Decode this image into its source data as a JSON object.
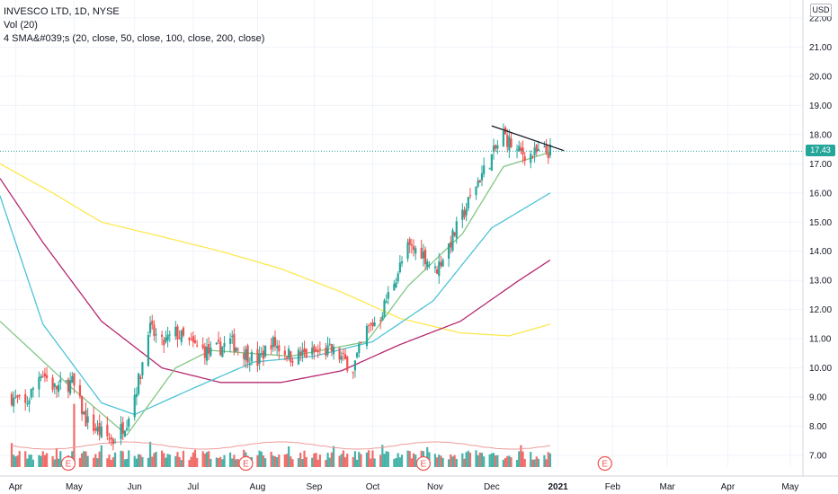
{
  "legend": {
    "symbol_line": "INVESCO LTD, 1D, NYSE",
    "vol_line": "Vol (20)",
    "sma_line": "4 SMA&#039;s (20, close, 50, close, 100, close, 200, close)"
  },
  "currency": "USD",
  "last_price_label": "17.43",
  "earnings_marker": "E",
  "colors": {
    "up": "#26a69a",
    "down": "#ef5350",
    "vol_up": "#26a69a",
    "vol_down": "#ef5350",
    "sma20": "#81c784",
    "sma50": "#4dc3d6",
    "sma100": "#b5286f",
    "sma200": "#fde84e",
    "vol_ma": "#ef9a9a",
    "trendline": "#131722"
  },
  "chart_data": {
    "type": "candlestick",
    "title": "INVESCO LTD, 1D, NYSE",
    "y_ticks": [
      "7.00",
      "8.00",
      "9.00",
      "10.00",
      "11.00",
      "12.00",
      "13.00",
      "14.00",
      "15.00",
      "16.00",
      "17.00",
      "18.00",
      "19.00",
      "20.00",
      "21.00",
      "22.00"
    ],
    "ylim": [
      6.6,
      22.3
    ],
    "x_ticks": [
      "Apr",
      "May",
      "Jun",
      "Jul",
      "Aug",
      "Sep",
      "Oct",
      "Nov",
      "Dec",
      "2021",
      "Feb",
      "Mar",
      "Apr",
      "May"
    ],
    "last_price": 17.43,
    "close_series_anchors": [
      [
        "2020-03-30",
        9.0
      ],
      [
        "2020-04-06",
        8.7
      ],
      [
        "2020-04-14",
        9.9
      ],
      [
        "2020-04-21",
        9.3
      ],
      [
        "2020-04-30",
        9.5
      ],
      [
        "2020-05-07",
        8.2
      ],
      [
        "2020-05-14",
        7.8
      ],
      [
        "2020-05-21",
        7.5
      ],
      [
        "2020-05-28",
        8.2
      ],
      [
        "2020-06-04",
        9.8
      ],
      [
        "2020-06-08",
        11.4
      ],
      [
        "2020-06-15",
        10.8
      ],
      [
        "2020-06-22",
        11.2
      ],
      [
        "2020-06-30",
        10.8
      ],
      [
        "2020-07-10",
        10.5
      ],
      [
        "2020-07-20",
        10.9
      ],
      [
        "2020-08-03",
        10.2
      ],
      [
        "2020-08-10",
        10.9
      ],
      [
        "2020-08-20",
        10.4
      ],
      [
        "2020-08-31",
        10.5
      ],
      [
        "2020-09-10",
        10.6
      ],
      [
        "2020-09-21",
        10.0
      ],
      [
        "2020-09-28",
        11.3
      ],
      [
        "2020-10-05",
        11.8
      ],
      [
        "2020-10-12",
        13.0
      ],
      [
        "2020-10-19",
        14.1
      ],
      [
        "2020-10-26",
        14.0
      ],
      [
        "2020-11-02",
        13.3
      ],
      [
        "2020-11-09",
        14.2
      ],
      [
        "2020-11-16",
        15.2
      ],
      [
        "2020-11-23",
        16.3
      ],
      [
        "2020-11-30",
        17.1
      ],
      [
        "2020-12-07",
        18.0
      ],
      [
        "2020-12-14",
        17.4
      ],
      [
        "2020-12-21",
        17.3
      ],
      [
        "2020-12-31",
        17.43
      ]
    ],
    "volume_relative": "shown as bars along bottom; values not labeled",
    "sma_anchors": {
      "sma20": [
        [
          "2020-03-24",
          11.6
        ],
        [
          "2020-04-30",
          9.3
        ],
        [
          "2020-05-28",
          7.7
        ],
        [
          "2020-06-22",
          10.0
        ],
        [
          "2020-07-10",
          10.6
        ],
        [
          "2020-08-20",
          10.4
        ],
        [
          "2020-09-28",
          10.9
        ],
        [
          "2020-10-19",
          12.8
        ],
        [
          "2020-11-16",
          14.6
        ],
        [
          "2020-12-07",
          16.9
        ],
        [
          "2020-12-31",
          17.4
        ]
      ],
      "sma50": [
        [
          "2020-03-24",
          15.9
        ],
        [
          "2020-04-15",
          11.5
        ],
        [
          "2020-05-15",
          8.8
        ],
        [
          "2020-06-01",
          8.4
        ],
        [
          "2020-07-01",
          9.3
        ],
        [
          "2020-08-01",
          10.2
        ],
        [
          "2020-09-01",
          10.4
        ],
        [
          "2020-10-01",
          10.9
        ],
        [
          "2020-11-01",
          12.3
        ],
        [
          "2020-12-01",
          14.8
        ],
        [
          "2020-12-31",
          16.0
        ]
      ],
      "sma100": [
        [
          "2020-03-24",
          16.5
        ],
        [
          "2020-04-15",
          14.3
        ],
        [
          "2020-05-15",
          11.6
        ],
        [
          "2020-06-15",
          10.0
        ],
        [
          "2020-07-15",
          9.5
        ],
        [
          "2020-08-15",
          9.5
        ],
        [
          "2020-09-15",
          9.9
        ],
        [
          "2020-10-15",
          10.8
        ],
        [
          "2020-11-15",
          11.6
        ],
        [
          "2020-12-15",
          13.0
        ],
        [
          "2020-12-31",
          13.7
        ]
      ],
      "sma200": [
        [
          "2020-03-24",
          17.0
        ],
        [
          "2020-04-20",
          16.0
        ],
        [
          "2020-05-15",
          15.0
        ],
        [
          "2020-06-15",
          14.5
        ],
        [
          "2020-07-15",
          14.0
        ],
        [
          "2020-08-15",
          13.4
        ],
        [
          "2020-09-15",
          12.6
        ],
        [
          "2020-10-15",
          11.7
        ],
        [
          "2020-11-15",
          11.2
        ],
        [
          "2020-12-10",
          11.1
        ],
        [
          "2020-12-31",
          11.5
        ]
      ]
    },
    "trendline": [
      [
        "2020-12-01",
        18.3
      ],
      [
        "2021-01-07",
        17.45
      ]
    ]
  }
}
